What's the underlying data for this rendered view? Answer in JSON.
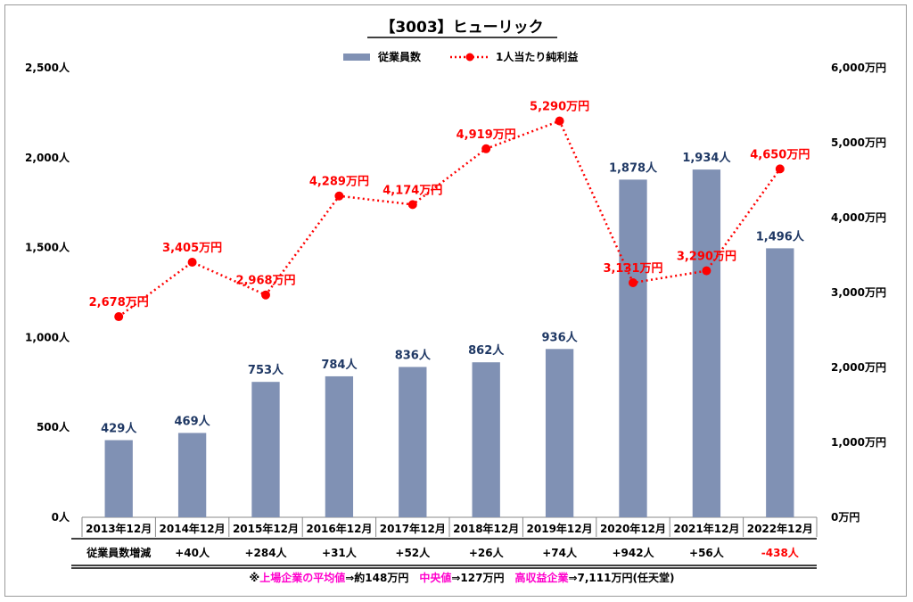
{
  "chart_data": {
    "type": "bar",
    "title": "【3003】ヒューリック",
    "categories": [
      "2013年12月",
      "2014年12月",
      "2015年12月",
      "2016年12月",
      "2017年12月",
      "2018年12月",
      "2019年12月",
      "2020年12月",
      "2021年12月",
      "2022年12月"
    ],
    "series": [
      {
        "name": "従業員数",
        "type": "bar",
        "axis": "left",
        "color": "#8091b4",
        "values": [
          429,
          469,
          753,
          784,
          836,
          862,
          936,
          1878,
          1934,
          1496
        ],
        "labels": [
          "429人",
          "469人",
          "753人",
          "784人",
          "836人",
          "862人",
          "936人",
          "1,878人",
          "1,934人",
          "1,496人"
        ]
      },
      {
        "name": "1人当たり純利益",
        "type": "line",
        "axis": "right",
        "color": "#ff0000",
        "style": "dotted",
        "values": [
          2678,
          3405,
          2968,
          4289,
          4174,
          4919,
          5290,
          3131,
          3290,
          4650
        ],
        "labels": [
          "2,678万円",
          "3,405万円",
          "2,968万円",
          "4,289万円",
          "4,174万円",
          "4,919万円",
          "5,290万円",
          "3,131万円",
          "3,290万円",
          "4,650万円"
        ]
      }
    ],
    "y_left": {
      "ylim": [
        0,
        2500
      ],
      "ticks": [
        0,
        500,
        1000,
        1500,
        2000,
        2500
      ],
      "tick_labels": [
        "0人",
        "500人",
        "1,000人",
        "1,500人",
        "2,000人",
        "2,500人"
      ]
    },
    "y_right": {
      "ylim": [
        0,
        6000
      ],
      "ticks": [
        0,
        1000,
        2000,
        3000,
        4000,
        5000,
        6000
      ],
      "tick_labels": [
        "0万円",
        "1,000万円",
        "2,000万円",
        "3,000万円",
        "4,000万円",
        "5,000万円",
        "6,000万円"
      ]
    },
    "grid": false,
    "legend_position": "top-center",
    "table": {
      "row_label": "従業員数増減",
      "values": [
        "",
        "+40人",
        "+284人",
        "+31人",
        "+52人",
        "+26人",
        "+74人",
        "+942人",
        "+56人",
        "-438人"
      ],
      "negative_color": "#ff0000"
    }
  },
  "note": {
    "prefix": "※",
    "part1_label": "上場企業の平均値",
    "part1_value": "⇒約148万円",
    "part2_label": "中央値",
    "part2_value": "⇒127万円",
    "part3_label": "高収益企業",
    "part3_value": "⇒7,111万円(任天堂)",
    "accent_color": "#ff00cc"
  }
}
